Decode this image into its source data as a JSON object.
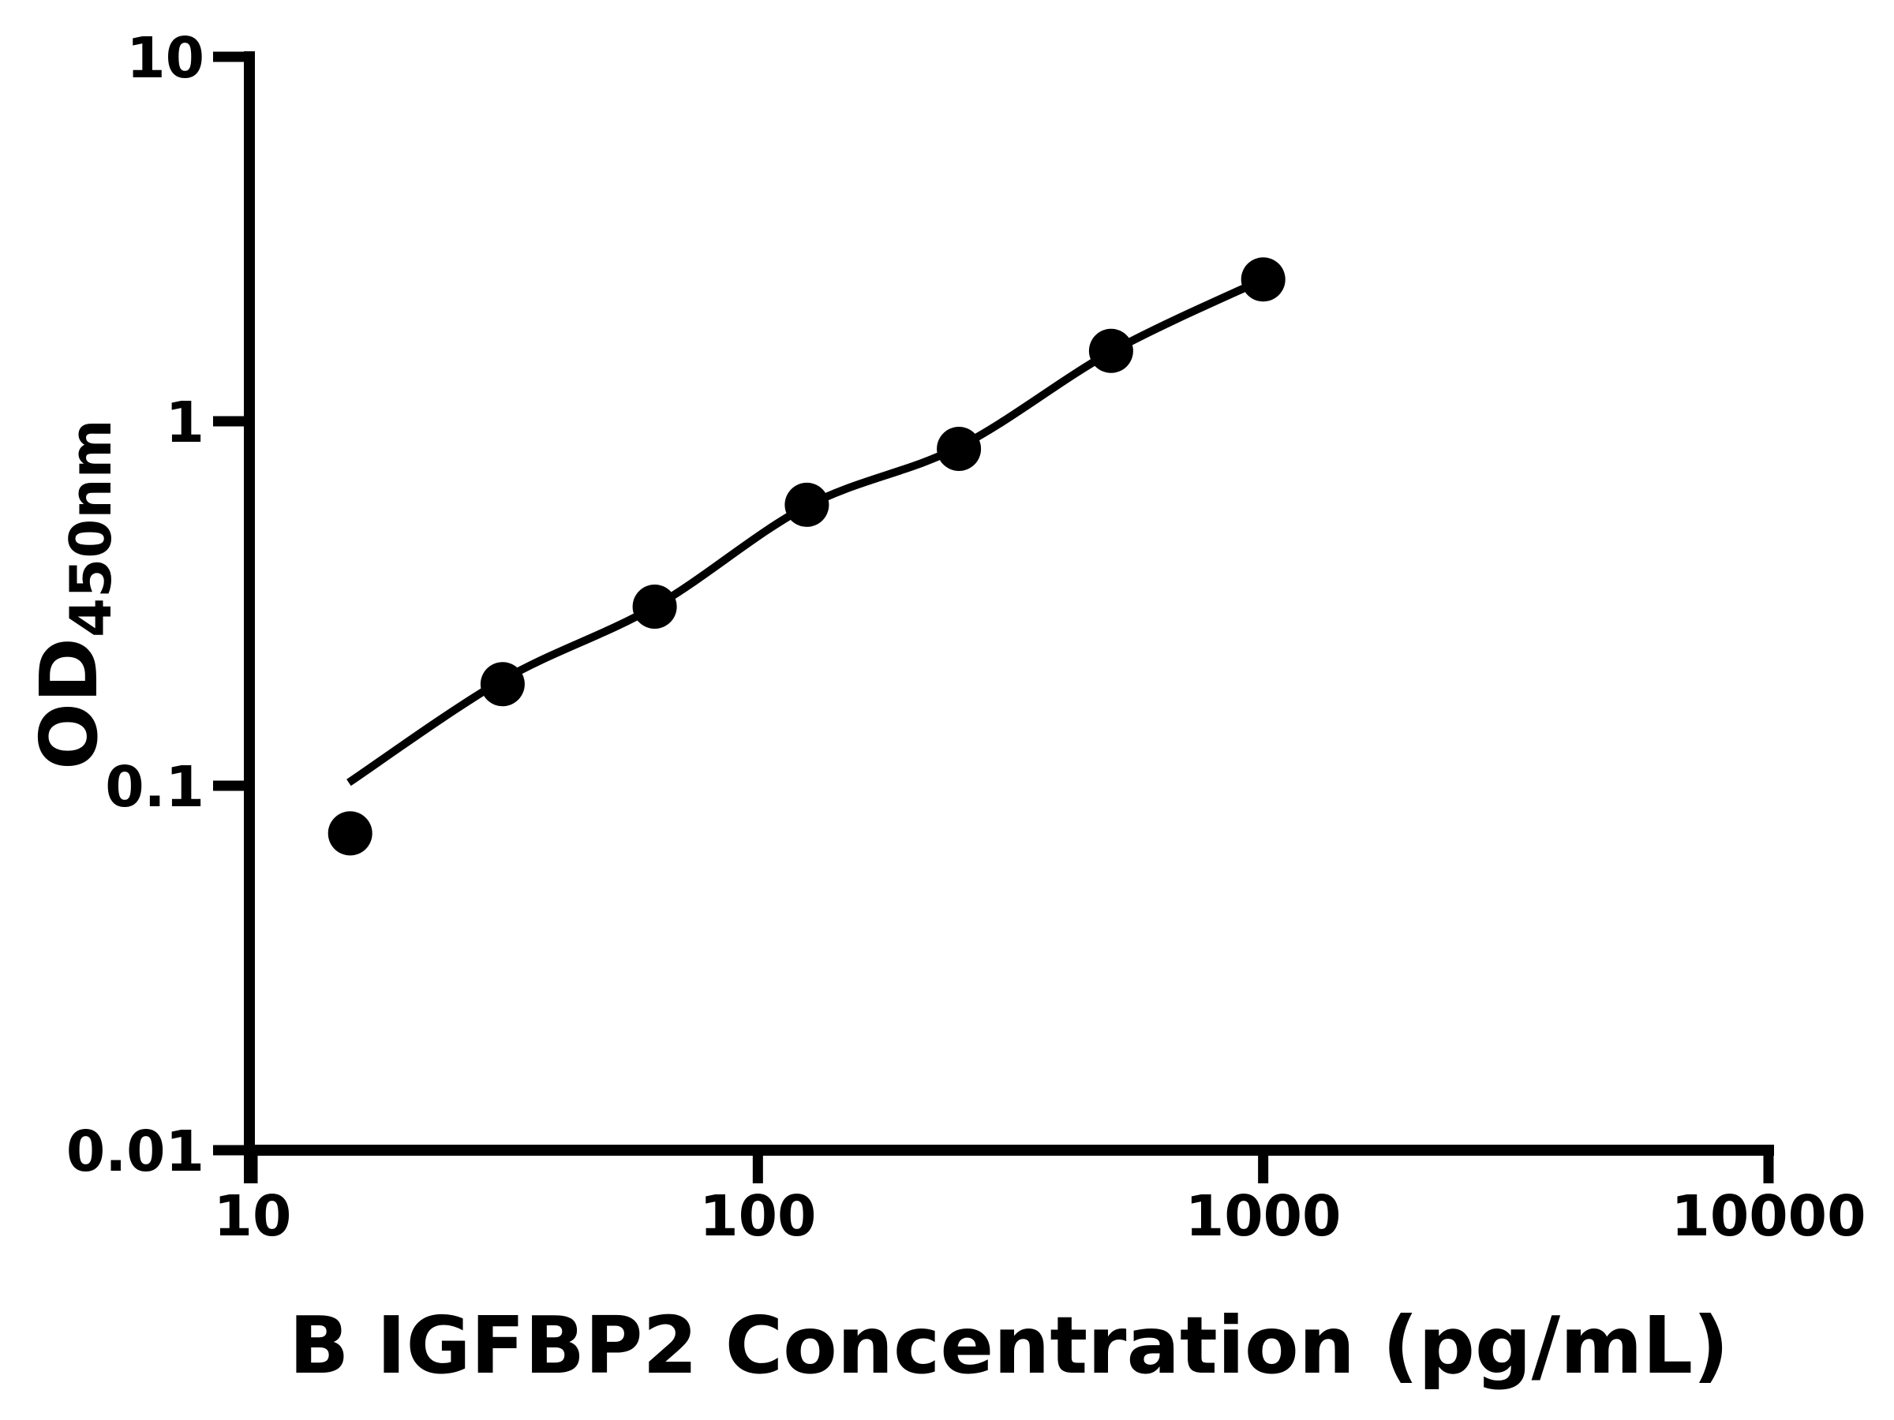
{
  "figure": {
    "background_color": "#ffffff",
    "ink_color": "#000000"
  },
  "chart_data": {
    "type": "scatter",
    "title": "",
    "xlabel": "B IGFBP2 Concentration (pg/mL)",
    "ylabel": "OD",
    "ylabel_subscript": "450nm",
    "x_scale": "log10",
    "y_scale": "log10",
    "xlim": [
      10,
      10000
    ],
    "ylim": [
      0.01,
      10
    ],
    "x_ticks": [
      10,
      100,
      1000,
      10000
    ],
    "x_tick_labels": [
      "10",
      "100",
      "1000",
      "10000"
    ],
    "y_ticks": [
      10,
      1,
      0.1,
      0.01
    ],
    "y_tick_labels": [
      "10",
      "1",
      "0.1",
      "0.01"
    ],
    "grid": false,
    "legend": null,
    "marker_color": "#000000",
    "line_color": "#000000",
    "series": [
      {
        "name": "standard-points",
        "type": "scatter",
        "marker": "filled-circle",
        "points": [
          {
            "x": 15.6,
            "y": 0.074
          },
          {
            "x": 31.25,
            "y": 0.19
          },
          {
            "x": 62.5,
            "y": 0.31
          },
          {
            "x": 125,
            "y": 0.59
          },
          {
            "x": 250,
            "y": 0.84
          },
          {
            "x": 500,
            "y": 1.56
          },
          {
            "x": 1000,
            "y": 2.45
          }
        ]
      },
      {
        "name": "fitted-curve",
        "type": "line",
        "points": [
          {
            "x": 15.5,
            "y": 0.102
          },
          {
            "x": 31.25,
            "y": 0.195
          },
          {
            "x": 62.5,
            "y": 0.31
          },
          {
            "x": 125,
            "y": 0.585
          },
          {
            "x": 250,
            "y": 0.85
          },
          {
            "x": 500,
            "y": 1.55
          },
          {
            "x": 1000,
            "y": 2.45
          }
        ]
      }
    ]
  }
}
